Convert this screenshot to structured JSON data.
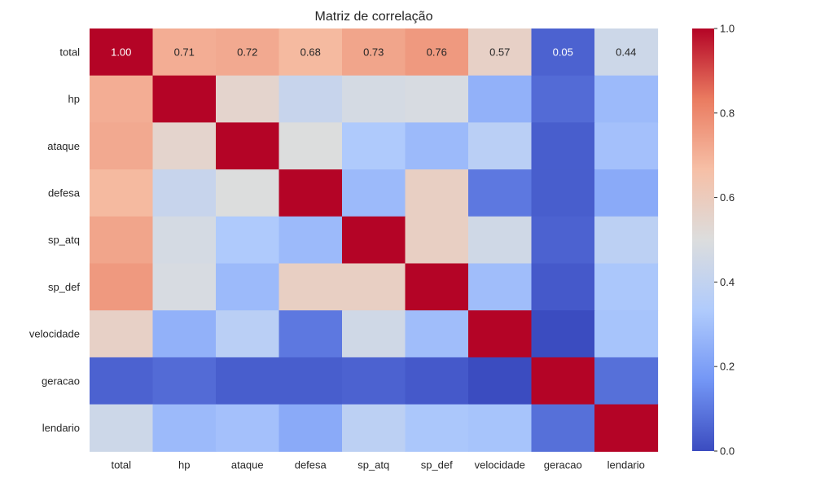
{
  "chart_data": {
    "type": "heatmap",
    "title": "Matriz de correlação",
    "xlabel": "",
    "ylabel": "",
    "categories": [
      "total",
      "hp",
      "ataque",
      "defesa",
      "sp_atq",
      "sp_def",
      "velocidade",
      "geracao",
      "lendario"
    ],
    "values": [
      [
        1.0,
        0.71,
        0.72,
        0.68,
        0.73,
        0.76,
        0.57,
        0.05,
        0.44
      ],
      [
        0.71,
        1.0,
        0.55,
        0.42,
        0.47,
        0.48,
        0.25,
        0.07,
        0.28
      ],
      [
        0.72,
        0.55,
        1.0,
        0.5,
        0.33,
        0.28,
        0.37,
        0.04,
        0.3
      ],
      [
        0.68,
        0.42,
        0.5,
        1.0,
        0.28,
        0.58,
        0.1,
        0.04,
        0.23
      ],
      [
        0.73,
        0.47,
        0.33,
        0.28,
        1.0,
        0.58,
        0.45,
        0.05,
        0.38
      ],
      [
        0.76,
        0.48,
        0.28,
        0.58,
        0.58,
        1.0,
        0.29,
        0.03,
        0.32
      ],
      [
        0.57,
        0.25,
        0.37,
        0.1,
        0.45,
        0.29,
        1.0,
        -0.02,
        0.31
      ],
      [
        0.05,
        0.07,
        0.04,
        0.04,
        0.05,
        0.03,
        -0.02,
        1.0,
        0.08
      ],
      [
        0.44,
        0.28,
        0.3,
        0.23,
        0.38,
        0.32,
        0.31,
        0.08,
        1.0
      ]
    ],
    "annotated_rows": [
      0
    ],
    "colormap": "coolwarm",
    "colormap_stops": [
      "#3b4cc0",
      "#7396f5",
      "#b0cbfc",
      "#dcdddd",
      "#f6bfa6",
      "#ea7b60",
      "#b40426"
    ],
    "vmin": 0.0,
    "vmax": 1.0,
    "colorbar_ticks": [
      "0.0",
      "0.2",
      "0.4",
      "0.6",
      "0.8",
      "1.0"
    ],
    "legend_position": "right"
  }
}
